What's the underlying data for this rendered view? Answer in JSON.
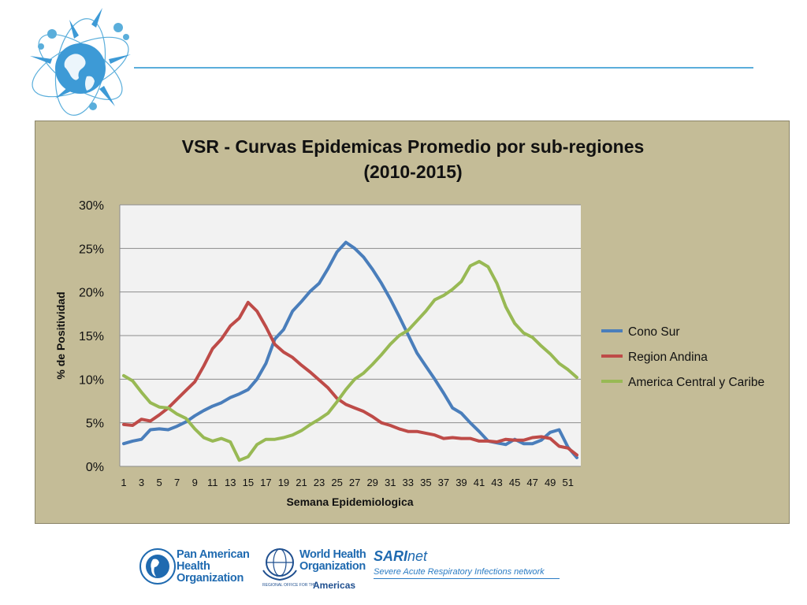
{
  "slide": {
    "header_logo_icon": "globe-virus-orbit-logo",
    "accent_color": "#5aaedb"
  },
  "chart_data": {
    "type": "line",
    "title": "VSR - Curvas Epidemicas Promedio por sub-regiones",
    "subtitle": "(2010-2015)",
    "xlabel": "Semana Epidemiologica",
    "ylabel": "% de Positividad",
    "x": [
      1,
      2,
      3,
      4,
      5,
      6,
      7,
      8,
      9,
      10,
      11,
      12,
      13,
      14,
      15,
      16,
      17,
      18,
      19,
      20,
      21,
      22,
      23,
      24,
      25,
      26,
      27,
      28,
      29,
      30,
      31,
      32,
      33,
      34,
      35,
      36,
      37,
      38,
      39,
      40,
      41,
      42,
      43,
      44,
      45,
      46,
      47,
      48,
      49,
      50,
      51,
      52
    ],
    "x_tick_labels": [
      "1",
      "3",
      "5",
      "7",
      "9",
      "11",
      "13",
      "15",
      "17",
      "19",
      "21",
      "23",
      "25",
      "27",
      "29",
      "31",
      "33",
      "35",
      "37",
      "39",
      "41",
      "43",
      "45",
      "47",
      "49",
      "51"
    ],
    "y_tick_labels": [
      "0%",
      "5%",
      "10%",
      "15%",
      "20%",
      "25%",
      "30%"
    ],
    "ylim": [
      0,
      30
    ],
    "grid": "horizontal",
    "legend_position": "right",
    "series": [
      {
        "name": "Cono Sur",
        "color": "#4a7ebb",
        "values": [
          2.6,
          2.9,
          3.1,
          4.2,
          4.3,
          4.2,
          4.6,
          5.1,
          5.8,
          6.4,
          6.9,
          7.3,
          7.9,
          8.3,
          8.8,
          10.0,
          11.8,
          14.6,
          15.7,
          17.8,
          18.9,
          20.1,
          21.0,
          22.7,
          24.6,
          25.7,
          25.0,
          24.0,
          22.6,
          21.0,
          19.2,
          17.2,
          15.1,
          13.0,
          11.5,
          10.0,
          8.4,
          6.7,
          6.1,
          5.0,
          4.0,
          2.9,
          2.7,
          2.5,
          3.1,
          2.6,
          2.6,
          3.0,
          3.9,
          4.2,
          2.2,
          1.0
        ]
      },
      {
        "name": "Region Andina",
        "color": "#be4b48",
        "values": [
          4.8,
          4.7,
          5.4,
          5.2,
          5.9,
          6.7,
          7.7,
          8.7,
          9.7,
          11.5,
          13.5,
          14.6,
          16.1,
          17.0,
          18.8,
          17.8,
          16.0,
          14.0,
          13.1,
          12.5,
          11.6,
          10.8,
          9.9,
          9.0,
          7.8,
          7.1,
          6.7,
          6.3,
          5.7,
          5.0,
          4.7,
          4.3,
          4.0,
          4.0,
          3.8,
          3.6,
          3.2,
          3.3,
          3.2,
          3.2,
          2.9,
          2.9,
          2.8,
          3.1,
          3.0,
          3.0,
          3.3,
          3.4,
          3.2,
          2.3,
          2.1,
          1.3
        ]
      },
      {
        "name": "America Central y Caribe",
        "color": "#98b954",
        "values": [
          10.4,
          9.8,
          8.5,
          7.3,
          6.8,
          6.7,
          6.0,
          5.5,
          4.3,
          3.3,
          2.9,
          3.2,
          2.8,
          0.7,
          1.1,
          2.5,
          3.1,
          3.1,
          3.3,
          3.6,
          4.1,
          4.8,
          5.4,
          6.1,
          7.4,
          8.8,
          10.0,
          10.7,
          11.7,
          12.8,
          14.0,
          15.0,
          15.6,
          16.7,
          17.8,
          19.1,
          19.6,
          20.3,
          21.2,
          23.0,
          23.5,
          22.9,
          21.0,
          18.3,
          16.4,
          15.3,
          14.8,
          13.8,
          12.9,
          11.8,
          11.1,
          10.2
        ]
      }
    ]
  },
  "footer": {
    "paho_icon": "paho-globe-seal",
    "paho_name_lines": [
      "Pan American",
      "Health",
      "Organization"
    ],
    "who_icon": "who-emblem",
    "who_name_lines": [
      "World Health",
      "Organization"
    ],
    "who_office": "REGIONAL OFFICE FOR THE",
    "who_region": "Americas",
    "sari_name": "SARI",
    "sari_name_suffix": "net",
    "sari_subtitle": "Severe Acute Respiratory Infections network"
  }
}
